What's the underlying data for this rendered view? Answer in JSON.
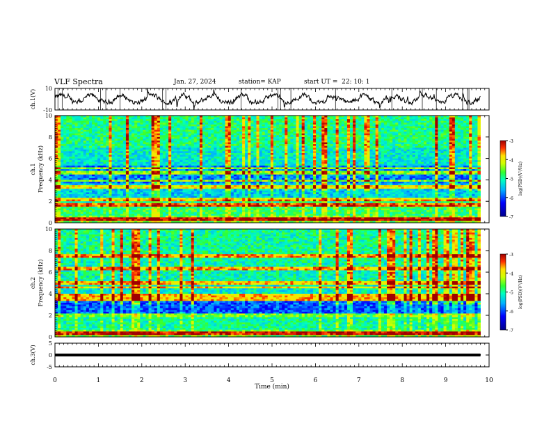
{
  "header": {
    "title": "VLF Spectra",
    "date": "Jan. 27, 2024",
    "station": "station= KAP",
    "start": "start UT =  22: 10: 1"
  },
  "chart_data": [
    {
      "type": "line",
      "name": "ch1-waveform",
      "ylabel": "ch.1(V)",
      "ylim": [
        -10,
        10
      ],
      "yticks": [
        "10",
        "-10"
      ],
      "xlim": [
        0,
        10
      ],
      "note_values": "noisy waveform mostly within about -5 to 5 V across 0-9.8 min"
    },
    {
      "type": "heatmap",
      "name": "ch1-spectrogram",
      "ylabel": "ch.1 Frequency (kHz)",
      "ylim": [
        0,
        10
      ],
      "yticks": [
        "0",
        "2",
        "4",
        "6",
        "8",
        "10"
      ],
      "xlim": [
        0,
        10
      ],
      "time_extent": [
        0,
        9.8
      ],
      "colorbar": {
        "label": "log(PSD)(V²/Hz)",
        "range": [
          -7,
          -3
        ],
        "ticks": [
          "-3",
          "-4",
          "-5",
          "-6",
          "-7"
        ]
      },
      "bands_khz": [
        0.3,
        1.7,
        2.2,
        3.3,
        3.9,
        4.7,
        5.1
      ]
    },
    {
      "type": "heatmap",
      "name": "ch2-spectrogram",
      "ylabel": "ch.2 Frequency (kHz)",
      "ylim": [
        0,
        10
      ],
      "yticks": [
        "0",
        "2",
        "4",
        "6",
        "8",
        "10"
      ],
      "xlim": [
        0,
        10
      ],
      "time_extent": [
        0,
        9.8
      ],
      "colorbar": {
        "label": "log(PSD)(V²/Hz)",
        "range": [
          -7,
          -3
        ],
        "ticks": [
          "-3",
          "-4",
          "-5",
          "-6",
          "-7"
        ]
      },
      "bands_khz": [
        0.3,
        1.9,
        2.1,
        3.5,
        3.8,
        4.6,
        5.0,
        6.3,
        7.5
      ]
    },
    {
      "type": "line",
      "name": "ch3-waveform",
      "ylabel": "ch.3(V)",
      "ylim": [
        -5,
        5
      ],
      "yticks": [
        "5",
        "0",
        "-5"
      ],
      "xlim": [
        0,
        10
      ],
      "xlabel": "Time (min)",
      "xticks": [
        "0",
        "1",
        "2",
        "3",
        "4",
        "5",
        "6",
        "7",
        "8",
        "9",
        "10"
      ],
      "note_values": "dense oscillation between about -0.5 and 0.5 V across 0-9.8 min"
    }
  ],
  "colors": {
    "axis": "#000000",
    "colormap": [
      "#00008b",
      "#0000ff",
      "#00a0ff",
      "#00ffd0",
      "#30ff30",
      "#c8ff00",
      "#ffff00",
      "#ff9000",
      "#ff0000",
      "#b00000"
    ]
  }
}
